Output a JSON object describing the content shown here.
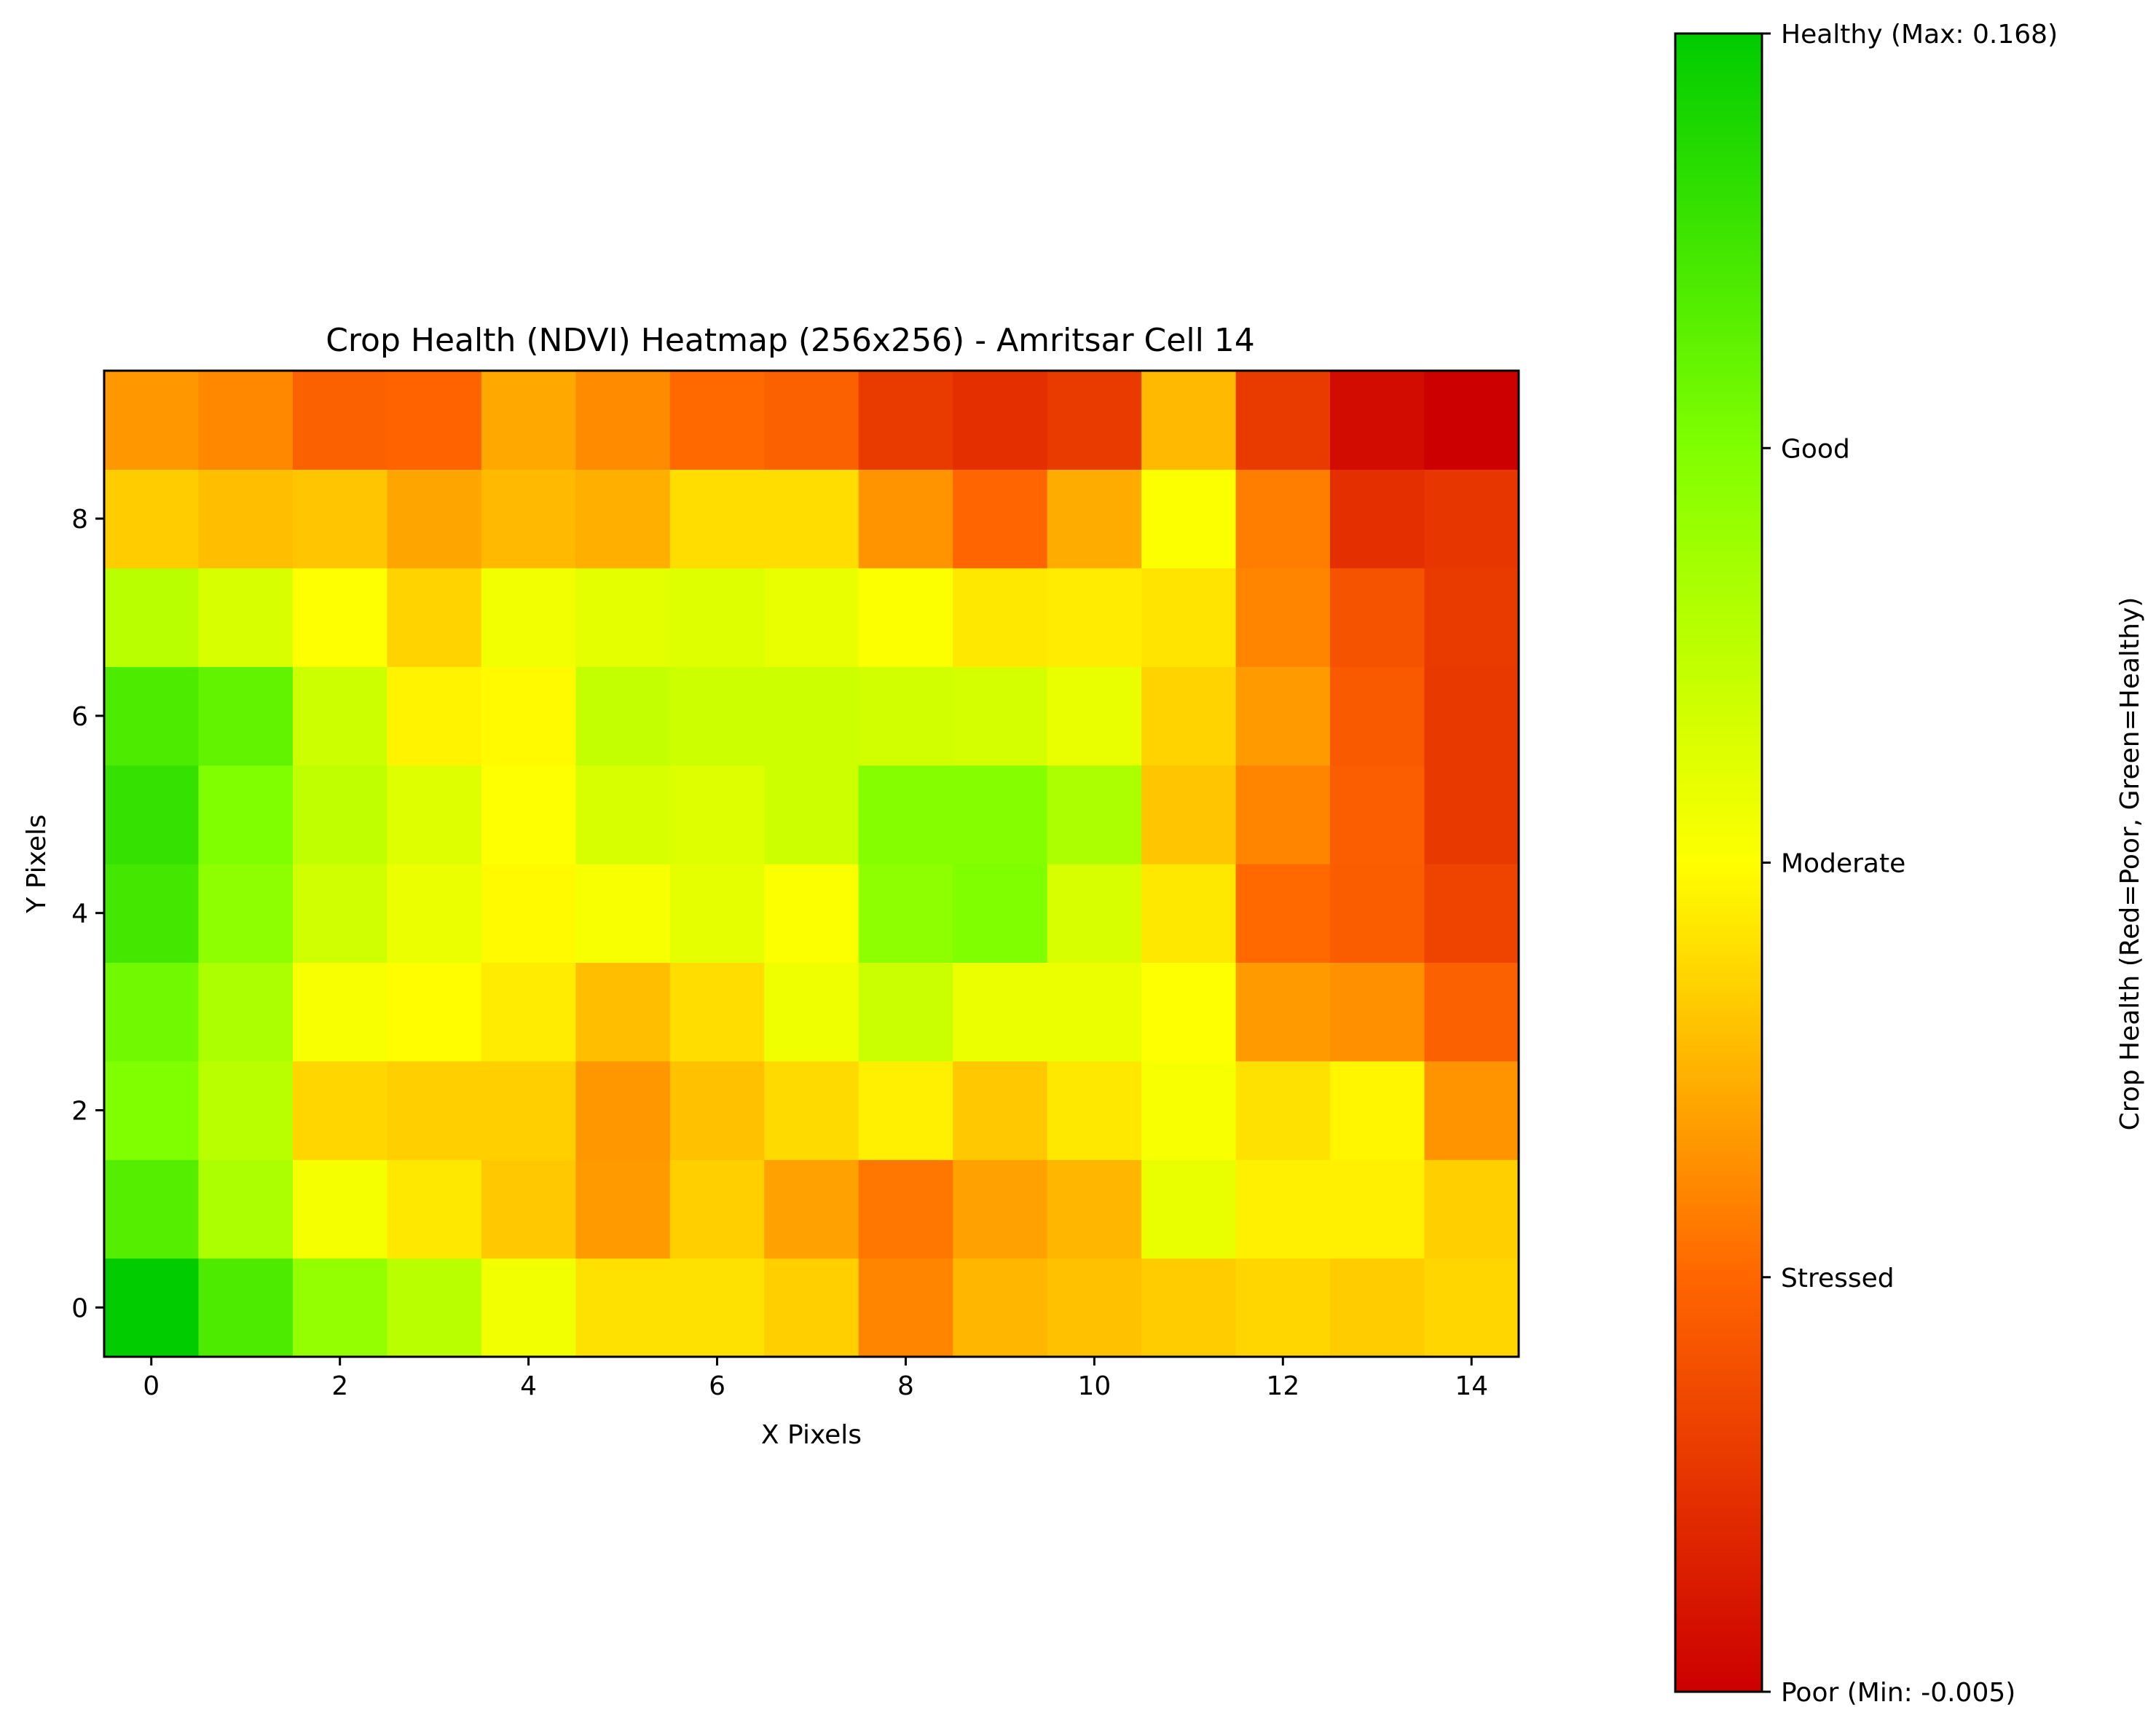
{
  "chart_data": {
    "type": "heatmap",
    "title": "Crop Health (NDVI) Heatmap (256x256) - Amritsar Cell 14",
    "xlabel": "X Pixels",
    "ylabel": "Y Pixels",
    "x_ticks": [
      "0",
      "2",
      "4",
      "6",
      "8",
      "10",
      "12",
      "14"
    ],
    "y_ticks": [
      "0",
      "2",
      "4",
      "6",
      "8"
    ],
    "x_range": [
      -0.5,
      14.5
    ],
    "y_range": [
      -0.5,
      9.5
    ],
    "origin": "lower",
    "colormap": [
      "#cc0000",
      "#ff6600",
      "#ffff00",
      "#80ff00",
      "#00cc00"
    ],
    "vmin": -0.005,
    "vmax": 0.168,
    "colorbar": {
      "label": "Crop Health (Red=Poor, Green=Healthy)",
      "ticks": [
        {
          "value": -0.005,
          "label": "Poor (Min: -0.005)"
        },
        {
          "value": 0.03825,
          "label": "Stressed"
        },
        {
          "value": 0.0815,
          "label": "Moderate"
        },
        {
          "value": 0.12475,
          "label": "Good"
        },
        {
          "value": 0.168,
          "label": "Healthy (Max: 0.168)"
        }
      ]
    },
    "rows": [
      [
        0.168,
        0.142,
        0.118,
        0.105,
        0.086,
        0.073,
        0.073,
        0.068,
        0.047,
        0.061,
        0.064,
        0.067,
        0.07,
        0.067,
        0.07
      ],
      [
        0.139,
        0.11,
        0.085,
        0.075,
        0.066,
        0.053,
        0.068,
        0.055,
        0.043,
        0.055,
        0.061,
        0.089,
        0.077,
        0.077,
        0.068
      ],
      [
        0.125,
        0.105,
        0.07,
        0.068,
        0.068,
        0.052,
        0.064,
        0.071,
        0.077,
        0.066,
        0.075,
        0.084,
        0.073,
        0.079,
        0.051
      ],
      [
        0.13,
        0.11,
        0.084,
        0.081,
        0.076,
        0.063,
        0.072,
        0.087,
        0.1,
        0.088,
        0.088,
        0.082,
        0.053,
        0.05,
        0.036
      ],
      [
        0.145,
        0.12,
        0.098,
        0.088,
        0.08,
        0.084,
        0.09,
        0.083,
        0.12,
        0.125,
        0.095,
        0.075,
        0.039,
        0.034,
        0.024
      ],
      [
        0.15,
        0.125,
        0.103,
        0.093,
        0.082,
        0.095,
        0.093,
        0.099,
        0.123,
        0.123,
        0.11,
        0.065,
        0.047,
        0.035,
        0.019
      ],
      [
        0.142,
        0.135,
        0.099,
        0.078,
        0.08,
        0.102,
        0.099,
        0.099,
        0.097,
        0.096,
        0.089,
        0.069,
        0.053,
        0.033,
        0.019
      ],
      [
        0.105,
        0.095,
        0.082,
        0.069,
        0.086,
        0.091,
        0.093,
        0.089,
        0.083,
        0.075,
        0.076,
        0.074,
        0.047,
        0.03,
        0.02
      ],
      [
        0.067,
        0.063,
        0.065,
        0.056,
        0.062,
        0.059,
        0.072,
        0.072,
        0.051,
        0.038,
        0.058,
        0.083,
        0.045,
        0.015,
        0.018
      ],
      [
        0.052,
        0.048,
        0.036,
        0.037,
        0.057,
        0.049,
        0.039,
        0.036,
        0.02,
        0.015,
        0.02,
        0.062,
        0.02,
        0.0,
        -0.005
      ]
    ]
  }
}
